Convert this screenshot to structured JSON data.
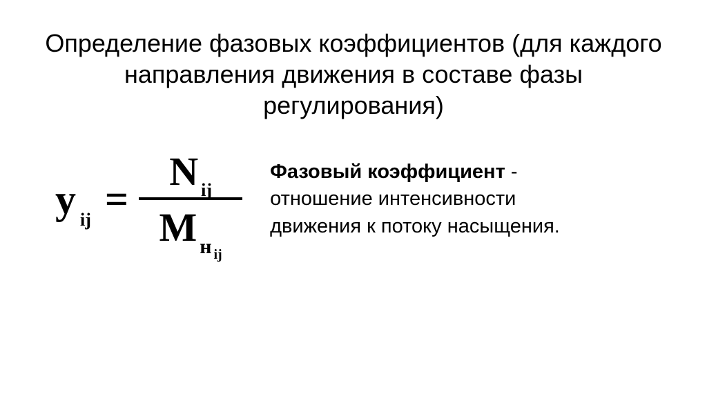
{
  "title": "Определение фазовых коэффициентов (для каждого направления движения в составе фазы регулирования)",
  "formula": {
    "lhs_var": "y",
    "lhs_sub": "ij",
    "eq": "=",
    "num_var": "N",
    "num_sub": "ij",
    "den_var": "M",
    "den_sub1": "н",
    "den_sub2": "ij"
  },
  "definition": {
    "term": "Фазовый коэффициент",
    "dash": " - ",
    "text": "отношение интенсивности движения к потоку насыщения."
  },
  "colors": {
    "background": "#ffffff",
    "text": "#000000"
  },
  "typography": {
    "title_fontsize": 36,
    "formula_fontsize": 60,
    "formula_sub_fontsize": 26,
    "definition_fontsize": 29,
    "formula_font": "Times New Roman",
    "body_font": "Arial"
  }
}
